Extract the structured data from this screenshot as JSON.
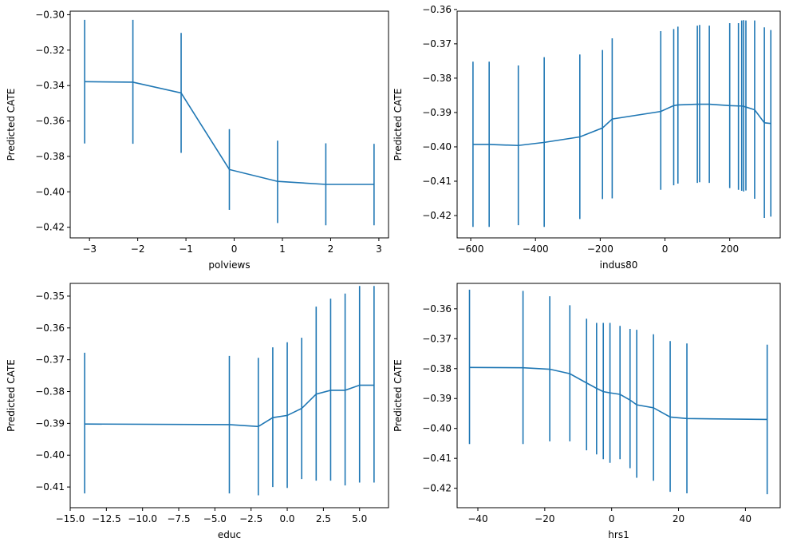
{
  "colors": {
    "series": "#1f77b4",
    "axis": "#000000",
    "background": "#ffffff"
  },
  "chart_data": [
    {
      "type": "line",
      "error_bars": true,
      "grid": false,
      "xlabel": "polviews",
      "ylabel": "Predicted CATE",
      "xlim": [
        -3.4,
        3.2
      ],
      "ylim": [
        -0.426,
        -0.298
      ],
      "xticks": [
        -3,
        -2,
        -1,
        0,
        1,
        2,
        3
      ],
      "xtick_labels": [
        "−3",
        "−2",
        "−1",
        "0",
        "1",
        "2",
        "3"
      ],
      "yticks": [
        -0.42,
        -0.4,
        -0.38,
        -0.36,
        -0.34,
        -0.32,
        -0.3
      ],
      "ytick_labels": [
        "−0.42",
        "−0.40",
        "−0.38",
        "−0.36",
        "−0.34",
        "−0.32",
        "−0.30"
      ],
      "x": [
        -3.1,
        -2.1,
        -1.1,
        -0.1,
        0.9,
        1.9,
        2.9
      ],
      "y": [
        -0.3378,
        -0.3381,
        -0.3442,
        -0.3874,
        -0.3941,
        -0.3958,
        -0.3958
      ],
      "lower": [
        -0.3727,
        -0.3729,
        -0.378,
        -0.4102,
        -0.4176,
        -0.4189,
        -0.4189
      ],
      "upper": [
        -0.3029,
        -0.3029,
        -0.3103,
        -0.3646,
        -0.3711,
        -0.3726,
        -0.3729
      ]
    },
    {
      "type": "line",
      "error_bars": true,
      "grid": false,
      "xlabel": "indus80",
      "ylabel": "Predicted CATE",
      "xlim": [
        -642,
        356
      ],
      "ylim": [
        -0.4265,
        -0.3605
      ],
      "xticks": [
        -600,
        -400,
        -200,
        0,
        200
      ],
      "xtick_labels": [
        "−600",
        "−400",
        "−200",
        "0",
        "200"
      ],
      "yticks": [
        -0.42,
        -0.41,
        -0.4,
        -0.39,
        -0.38,
        -0.37,
        -0.36
      ],
      "ytick_labels": [
        "−0.42",
        "−0.41",
        "−0.40",
        "−0.39",
        "−0.38",
        "−0.37",
        "−0.36"
      ],
      "x": [
        -593,
        -543,
        -453,
        -373,
        -263,
        -193,
        -163,
        -13,
        27,
        40,
        100,
        107,
        137,
        200,
        227,
        237,
        243,
        250,
        277,
        307,
        327
      ],
      "y": [
        -0.3993,
        -0.3993,
        -0.3996,
        -0.3987,
        -0.3971,
        -0.3945,
        -0.3919,
        -0.3897,
        -0.388,
        -0.3878,
        -0.3876,
        -0.3876,
        -0.3876,
        -0.388,
        -0.3881,
        -0.3881,
        -0.3882,
        -0.3884,
        -0.3892,
        -0.393,
        -0.3932
      ],
      "lower": [
        -0.4233,
        -0.4233,
        -0.4228,
        -0.4233,
        -0.421,
        -0.4152,
        -0.415,
        -0.4125,
        -0.4112,
        -0.4107,
        -0.4105,
        -0.4103,
        -0.4105,
        -0.412,
        -0.4125,
        -0.4128,
        -0.413,
        -0.4127,
        -0.4151,
        -0.4207,
        -0.4203
      ],
      "upper": [
        -0.3752,
        -0.3752,
        -0.3763,
        -0.3739,
        -0.3731,
        -0.3718,
        -0.3684,
        -0.3663,
        -0.3657,
        -0.365,
        -0.3647,
        -0.3645,
        -0.3647,
        -0.364,
        -0.364,
        -0.3632,
        -0.3631,
        -0.3632,
        -0.3632,
        -0.3652,
        -0.366
      ]
    },
    {
      "type": "line",
      "error_bars": true,
      "grid": false,
      "xlabel": "educ",
      "ylabel": "Predicted CATE",
      "xlim": [
        -15,
        7
      ],
      "ylim": [
        -0.4165,
        -0.346
      ],
      "xticks": [
        -15,
        -12.5,
        -10,
        -7.5,
        -5,
        -2.5,
        0,
        2.5,
        5
      ],
      "xtick_labels": [
        "−15.0",
        "−12.5",
        "−10.0",
        "−7.5",
        "−5.0",
        "−2.5",
        "0.0",
        "2.5",
        "5.0"
      ],
      "yticks": [
        -0.41,
        -0.4,
        -0.39,
        -0.38,
        -0.37,
        -0.36,
        -0.35
      ],
      "ytick_labels": [
        "−0.41",
        "−0.40",
        "−0.39",
        "−0.38",
        "−0.37",
        "−0.36",
        "−0.35"
      ],
      "x": [
        -14,
        -4,
        -2,
        -1,
        0,
        1,
        2,
        3,
        4,
        5,
        6
      ],
      "y": [
        -0.3902,
        -0.3904,
        -0.391,
        -0.3882,
        -0.3875,
        -0.3853,
        -0.3808,
        -0.3796,
        -0.3796,
        -0.378,
        -0.378
      ],
      "lower": [
        -0.412,
        -0.412,
        -0.4126,
        -0.41,
        -0.4103,
        -0.4075,
        -0.408,
        -0.408,
        -0.4095,
        -0.4086,
        -0.4086
      ],
      "upper": [
        -0.3678,
        -0.3688,
        -0.3694,
        -0.3661,
        -0.3645,
        -0.3631,
        -0.3533,
        -0.3508,
        -0.3492,
        -0.3468,
        -0.3468
      ]
    },
    {
      "type": "line",
      "error_bars": true,
      "grid": false,
      "xlabel": "hrs1",
      "ylabel": "Predicted CATE",
      "xlim": [
        -46.2,
        50.4
      ],
      "ylim": [
        -0.4265,
        -0.3515
      ],
      "xticks": [
        -40,
        -20,
        0,
        20,
        40
      ],
      "xtick_labels": [
        "−40",
        "−20",
        "0",
        "20",
        "40"
      ],
      "yticks": [
        -0.42,
        -0.41,
        -0.4,
        -0.39,
        -0.38,
        -0.37,
        -0.36
      ],
      "ytick_labels": [
        "−0.42",
        "−0.41",
        "−0.40",
        "−0.39",
        "−0.38",
        "−0.37",
        "−0.36"
      ],
      "x": [
        -42.5,
        -26.5,
        -18.5,
        -12.5,
        -7.5,
        -4.5,
        -2.5,
        -0.5,
        2.5,
        5.5,
        7.5,
        12.5,
        17.5,
        22.5,
        46.5
      ],
      "y": [
        -0.3796,
        -0.3797,
        -0.3802,
        -0.3817,
        -0.3848,
        -0.3866,
        -0.3877,
        -0.3881,
        -0.3886,
        -0.3905,
        -0.3921,
        -0.3931,
        -0.3962,
        -0.3967,
        -0.397
      ],
      "lower": [
        -0.4052,
        -0.4052,
        -0.4043,
        -0.4043,
        -0.4073,
        -0.4087,
        -0.4103,
        -0.4115,
        -0.4103,
        -0.4133,
        -0.4165,
        -0.4175,
        -0.4212,
        -0.4217,
        -0.422
      ],
      "upper": [
        -0.3536,
        -0.354,
        -0.3558,
        -0.3588,
        -0.3633,
        -0.3647,
        -0.3647,
        -0.3647,
        -0.3657,
        -0.3667,
        -0.367,
        -0.3685,
        -0.3708,
        -0.3716,
        -0.372
      ]
    }
  ]
}
